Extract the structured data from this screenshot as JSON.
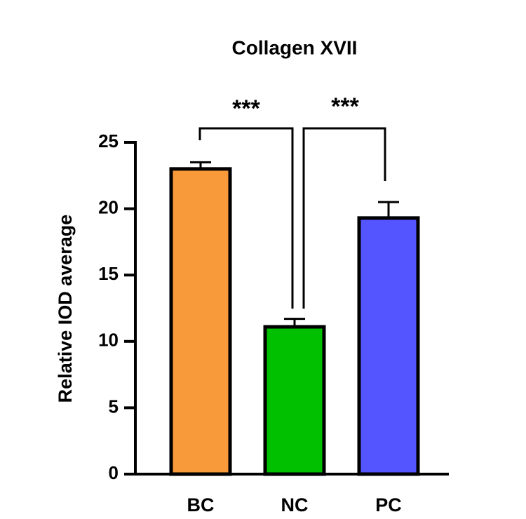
{
  "chart_data": {
    "type": "bar",
    "title": "Collagen XVII",
    "y_label": "Relative IOD average",
    "categories": [
      "BC",
      "NC",
      "PC"
    ],
    "values": [
      23,
      11.1,
      19.3
    ],
    "errors": [
      0.5,
      0.6,
      1.2
    ],
    "colors": [
      "#f99a3a",
      "#00c000",
      "#5555ff"
    ],
    "ylim": [
      0,
      25
    ],
    "yticks": [
      0,
      5,
      10,
      15,
      20,
      25
    ],
    "annotations": [
      "***",
      "***"
    ]
  }
}
